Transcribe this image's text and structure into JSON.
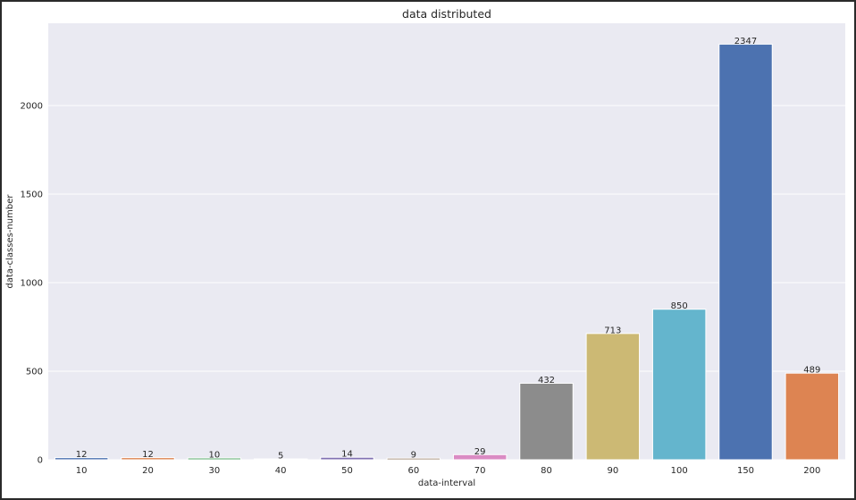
{
  "chart_data": {
    "type": "bar",
    "title": "data distributed",
    "xlabel": "data-interval",
    "ylabel": "data-classes-number",
    "categories": [
      "10",
      "20",
      "30",
      "40",
      "50",
      "60",
      "70",
      "80",
      "90",
      "100",
      "150",
      "200"
    ],
    "values": [
      12,
      12,
      10,
      5,
      14,
      9,
      29,
      432,
      713,
      850,
      2347,
      489
    ],
    "data_labels": [
      "12",
      "12",
      "10",
      "5",
      "14",
      "9",
      "29",
      "432",
      "713",
      "850",
      "2347",
      "489"
    ],
    "ylim": [
      0,
      2465
    ],
    "yticks": [
      0,
      500,
      1000,
      1500,
      2000
    ],
    "ytick_labels": [
      "0",
      "500",
      "1000",
      "1500",
      "2000"
    ],
    "grid": true,
    "background_color": "#eaeaf2",
    "colors": [
      "#4c72b0",
      "#dd8452",
      "#55a868",
      "#c44e52",
      "#8172b3",
      "#937860",
      "#da8bc3",
      "#8c8c8c",
      "#ccb974",
      "#64b5cd",
      "#4c72b0",
      "#dd8452"
    ]
  }
}
